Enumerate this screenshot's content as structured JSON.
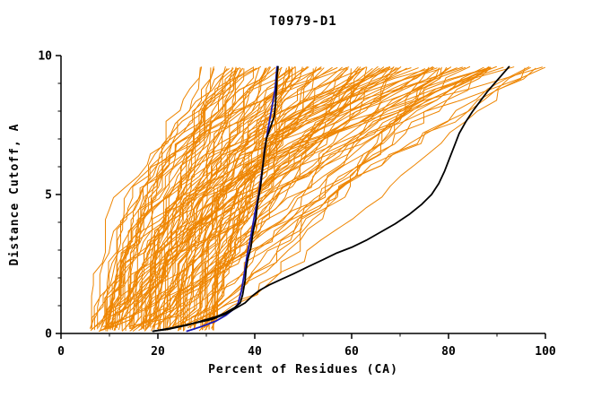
{
  "chart_data": {
    "type": "line",
    "title": "T0979-D1",
    "xlabel": "Percent of Residues (CA)",
    "ylabel": "Distance Cutoff, A",
    "xlim": [
      0,
      100
    ],
    "ylim": [
      0,
      10
    ],
    "x_ticks": [
      0,
      20,
      40,
      60,
      80,
      100
    ],
    "x_minor_ticks": [
      10,
      30,
      50,
      70,
      90
    ],
    "y_ticks": [
      0,
      5,
      10
    ],
    "y_minor_ticks": [
      1,
      2,
      3,
      4,
      6,
      7,
      8,
      9
    ],
    "grid": false,
    "legend": null,
    "axis_color": "#000000",
    "background_color": "#ffffff",
    "ensemble": {
      "name": "server-model-curves",
      "color": "#ee8500",
      "line_width": 1,
      "count": 120,
      "seed": 11,
      "x_start_range": [
        6,
        32
      ],
      "x_end_range": [
        24,
        100
      ],
      "y_range": [
        0.1,
        9.6
      ]
    },
    "series": [
      {
        "name": "highlight-model-blue",
        "color": "#1a1ab8",
        "width": 1.8,
        "points": [
          [
            26,
            0.08
          ],
          [
            29,
            0.25
          ],
          [
            32,
            0.45
          ],
          [
            34,
            0.65
          ],
          [
            35.5,
            0.85
          ],
          [
            36.5,
            1.05
          ],
          [
            37.2,
            1.5
          ],
          [
            37.8,
            2.1
          ],
          [
            38.4,
            2.8
          ],
          [
            39.2,
            3.5
          ],
          [
            40,
            4.3
          ],
          [
            40.8,
            5.0
          ],
          [
            41.3,
            5.6
          ],
          [
            41.7,
            6.1
          ],
          [
            42,
            6.6
          ],
          [
            42.6,
            7.2
          ],
          [
            43.4,
            8.0
          ],
          [
            44.2,
            8.8
          ],
          [
            44.6,
            9.6
          ]
        ]
      },
      {
        "name": "highlight-model-black-steep",
        "color": "#000000",
        "width": 1.8,
        "points": [
          [
            19,
            0.08
          ],
          [
            22,
            0.15
          ],
          [
            26,
            0.3
          ],
          [
            29,
            0.45
          ],
          [
            32,
            0.6
          ],
          [
            34,
            0.75
          ],
          [
            36,
            0.95
          ],
          [
            37,
            1.1
          ],
          [
            37.5,
            1.4
          ],
          [
            38,
            1.9
          ],
          [
            38.2,
            2.3
          ],
          [
            38.6,
            2.7
          ],
          [
            39.2,
            3.1
          ],
          [
            39.6,
            3.6
          ],
          [
            40.2,
            4.1
          ],
          [
            40.6,
            4.7
          ],
          [
            41.2,
            5.3
          ],
          [
            41.6,
            5.9
          ],
          [
            42,
            6.5
          ],
          [
            42.4,
            7.0
          ],
          [
            43.2,
            7.4
          ],
          [
            44,
            7.8
          ],
          [
            44.3,
            8.3
          ],
          [
            44.5,
            8.9
          ],
          [
            44.6,
            9.3
          ],
          [
            44.8,
            9.6
          ]
        ]
      },
      {
        "name": "highlight-model-black-right",
        "color": "#000000",
        "width": 1.8,
        "points": [
          [
            19,
            0.08
          ],
          [
            23,
            0.2
          ],
          [
            27,
            0.35
          ],
          [
            31,
            0.5
          ],
          [
            34,
            0.7
          ],
          [
            36,
            0.9
          ],
          [
            38,
            1.1
          ],
          [
            39.5,
            1.35
          ],
          [
            41,
            1.55
          ],
          [
            43,
            1.75
          ],
          [
            45.5,
            1.95
          ],
          [
            48,
            2.15
          ],
          [
            51,
            2.4
          ],
          [
            54,
            2.65
          ],
          [
            57,
            2.9
          ],
          [
            60,
            3.1
          ],
          [
            63,
            3.35
          ],
          [
            66,
            3.65
          ],
          [
            69,
            3.95
          ],
          [
            72,
            4.3
          ],
          [
            74.5,
            4.65
          ],
          [
            76.5,
            5.0
          ],
          [
            78,
            5.4
          ],
          [
            79.2,
            5.85
          ],
          [
            80.2,
            6.3
          ],
          [
            81.2,
            6.75
          ],
          [
            82.2,
            7.2
          ],
          [
            83.5,
            7.6
          ],
          [
            85,
            8.0
          ],
          [
            86.5,
            8.35
          ],
          [
            88,
            8.7
          ],
          [
            89.5,
            9.0
          ],
          [
            91,
            9.3
          ],
          [
            92.5,
            9.6
          ]
        ]
      }
    ]
  }
}
